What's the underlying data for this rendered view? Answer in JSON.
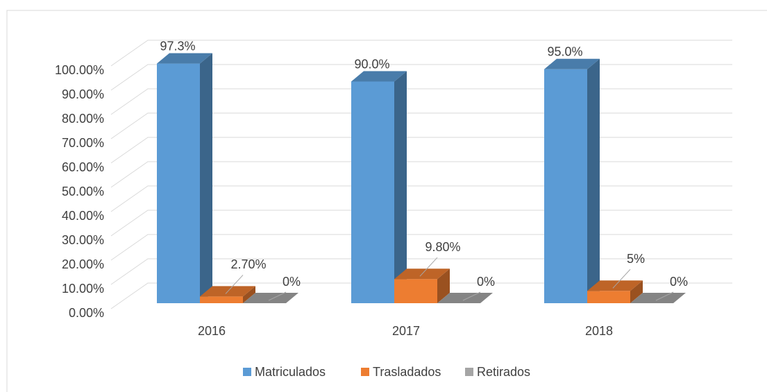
{
  "chart_data": {
    "type": "bar3d",
    "categories": [
      "2016",
      "2017",
      "2018"
    ],
    "series": [
      {
        "name": "Matriculados",
        "color": "#5b9bd5",
        "values": [
          97.3,
          90.0,
          95.0
        ],
        "value_labels": [
          "97.3%",
          "90.0%",
          "95.0%"
        ]
      },
      {
        "name": "Trasladados",
        "color": "#ed7d31",
        "values": [
          2.7,
          9.8,
          5
        ],
        "value_labels": [
          "2.70%",
          "9.80%",
          "5%"
        ]
      },
      {
        "name": "Retirados",
        "color": "#a5a5a5",
        "values": [
          0,
          0,
          0
        ],
        "value_labels": [
          "0%",
          "0%",
          "0%"
        ]
      }
    ],
    "ylim": [
      0,
      100
    ],
    "yticks": [
      {
        "value": 0,
        "label": "0.00%"
      },
      {
        "value": 10,
        "label": "10.00%"
      },
      {
        "value": 20,
        "label": "20.00%"
      },
      {
        "value": 30,
        "label": "30.00%"
      },
      {
        "value": 40,
        "label": "40.00%"
      },
      {
        "value": 50,
        "label": "50.00%"
      },
      {
        "value": 60,
        "label": "60.00%"
      },
      {
        "value": 70,
        "label": "70.00%"
      },
      {
        "value": 80,
        "label": "80.00%"
      },
      {
        "value": 90,
        "label": "90.00%"
      },
      {
        "value": 100,
        "label": "100.00%"
      }
    ],
    "grid": true,
    "legend": "bottom"
  }
}
